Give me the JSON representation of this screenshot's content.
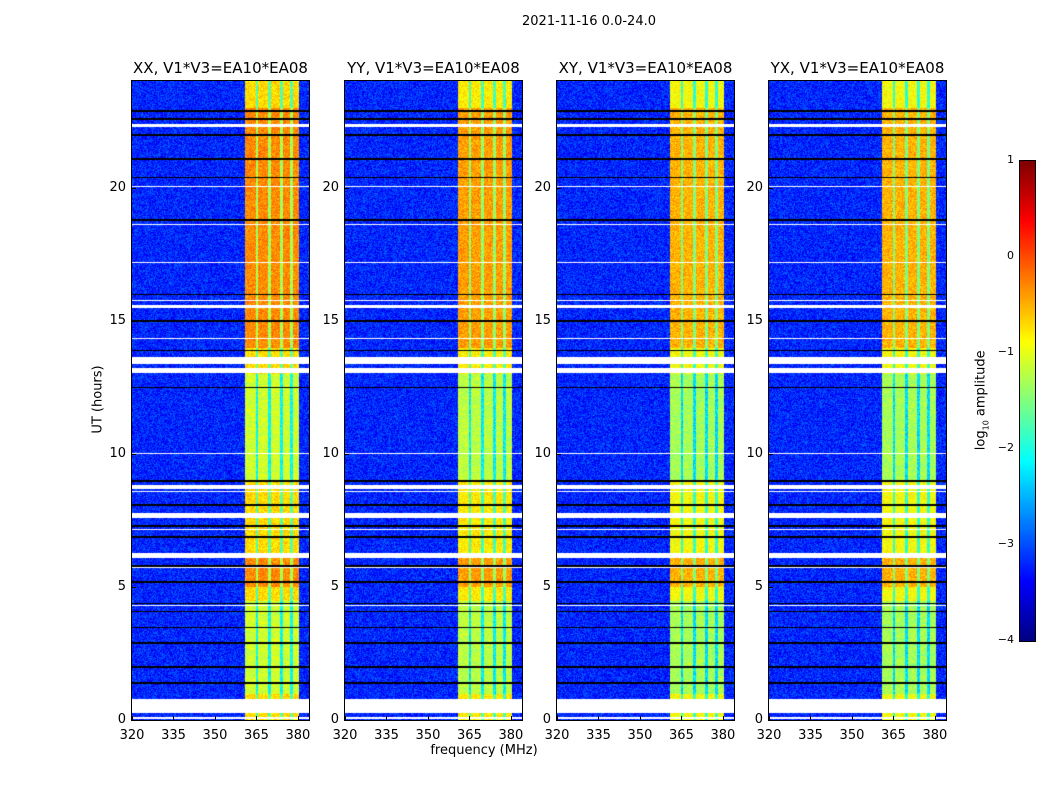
{
  "chart_data": {
    "type": "heatmap",
    "title": "2021-11-16 0.0-24.0",
    "xlabel": "frequency (MHz)",
    "ylabel": "UT (hours)",
    "xlim": [
      320,
      384
    ],
    "ylim": [
      0,
      24
    ],
    "xticks": [
      320,
      335,
      350,
      365,
      380
    ],
    "yticks": [
      0,
      5,
      10,
      15,
      20
    ],
    "panels": [
      {
        "title": "XX, V1*V3=EA10*EA08",
        "band_level": -0.7
      },
      {
        "title": "YY, V1*V3=EA10*EA08",
        "band_level": -0.8
      },
      {
        "title": "XY, V1*V3=EA10*EA08",
        "band_level": -0.9
      },
      {
        "title": "YX, V1*V3=EA10*EA08",
        "band_level": -0.9
      }
    ],
    "background_level": -3.2,
    "bright_band_mhz": [
      360.8,
      380.3
    ],
    "subband_edges_mhz": [
      365,
      369.5,
      374,
      377.5
    ],
    "flagged_hours": [
      [
        0.05,
        0.12
      ],
      [
        0.3,
        0.8
      ],
      [
        6.1,
        6.3
      ],
      [
        7.6,
        7.8
      ],
      [
        8.7,
        8.85
      ],
      [
        13.05,
        13.25
      ],
      [
        13.4,
        13.65
      ],
      [
        15.5,
        15.6
      ],
      [
        22.3,
        22.4
      ]
    ],
    "dark_lines_hours": [
      1.4,
      2.0,
      2.9,
      3.5,
      4.1,
      4.4,
      5.2,
      5.8,
      6.9,
      7.3,
      8.1,
      9.0,
      12.5,
      13.9,
      15.0,
      16.0,
      18.8,
      20.4,
      21.1,
      22.0,
      22.6,
      22.9
    ],
    "colorbar": {
      "label": "log₁₀ amplitude",
      "label_main": "log",
      "label_sub": "10",
      "label_rest": " amplitude",
      "range": [
        -4,
        1
      ],
      "ticks": [
        "1",
        "0",
        "−1",
        "−2",
        "−3",
        "−4"
      ],
      "colormap": "jet"
    }
  }
}
